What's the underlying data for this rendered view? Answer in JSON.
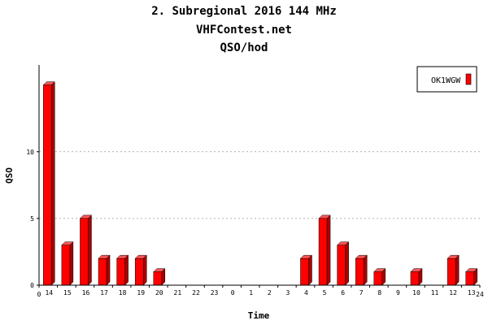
{
  "chart_data": {
    "type": "bar",
    "title_lines": [
      "2. Subregional 2016 144 MHz",
      "VHFContest.net",
      "QSO/hod"
    ],
    "xlabel": "Time",
    "ylabel": "QSO",
    "x_start_label": "0",
    "x_end_label": "24",
    "categories": [
      "14",
      "15",
      "16",
      "17",
      "18",
      "19",
      "20",
      "21",
      "22",
      "23",
      "0",
      "1",
      "2",
      "3",
      "4",
      "5",
      "6",
      "7",
      "8",
      "9",
      "10",
      "11",
      "12",
      "13"
    ],
    "series": [
      {
        "name": "OK1WGW",
        "color": "#ff0000",
        "values": [
          15,
          3,
          5,
          2,
          2,
          2,
          1,
          0,
          0,
          0,
          0,
          0,
          0,
          0,
          2,
          5,
          3,
          2,
          1,
          0,
          1,
          0,
          2,
          1
        ]
      }
    ],
    "ylim": [
      0,
      16.5
    ],
    "yticks": [
      0,
      5,
      10
    ],
    "grid": true,
    "legend_position": "top-right"
  }
}
